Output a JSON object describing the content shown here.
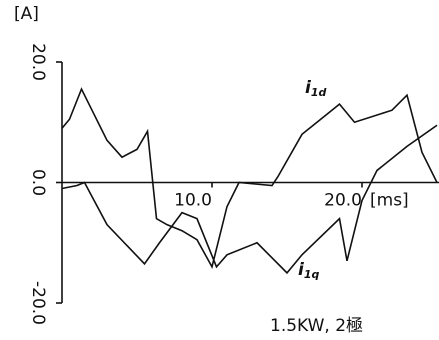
{
  "chart_data": {
    "type": "line",
    "y_unit": "[A]",
    "x_unit": "[ms]",
    "annotation": "1.5KW, 2極",
    "xlim": [
      0,
      25
    ],
    "ylim": [
      -20,
      20
    ],
    "xticks": [
      {
        "value": 10,
        "label": "10.0"
      },
      {
        "value": 20,
        "label": "20.0"
      }
    ],
    "yticks": [
      {
        "value": -20,
        "label": "-20.0"
      },
      {
        "value": 0,
        "label": "0.0"
      },
      {
        "value": 20,
        "label": "20.0"
      }
    ],
    "series": [
      {
        "name": "i",
        "subscript": "1d",
        "color": "#111111",
        "x": [
          0,
          0.5,
          1.3,
          2,
          3,
          4,
          5,
          5.7,
          6.3,
          7,
          8,
          9,
          10,
          11,
          11.8,
          14,
          14.4,
          16,
          17,
          18.5,
          19.5,
          22,
          23,
          24,
          25
        ],
        "values": [
          9,
          10.5,
          15.5,
          12,
          7,
          4.2,
          5.5,
          8.5,
          -6,
          -7,
          -8,
          -9.5,
          -14,
          -4,
          0,
          -0.5,
          1,
          8,
          10,
          13,
          10,
          12,
          14.5,
          5,
          0
        ]
      },
      {
        "name": "i",
        "subscript": "1q",
        "color": "#111111",
        "x": [
          0,
          1,
          1.5,
          3,
          5.5,
          6.5,
          8,
          9,
          10.3,
          11,
          13,
          15,
          16,
          18.5,
          19,
          20,
          21,
          23,
          25
        ],
        "values": [
          -1,
          -0.5,
          0,
          -7,
          -13.5,
          -10,
          -5,
          -6,
          -14,
          -12,
          -10,
          -15,
          -12,
          -6,
          -13,
          -3,
          2,
          6,
          9.5
        ]
      }
    ]
  }
}
